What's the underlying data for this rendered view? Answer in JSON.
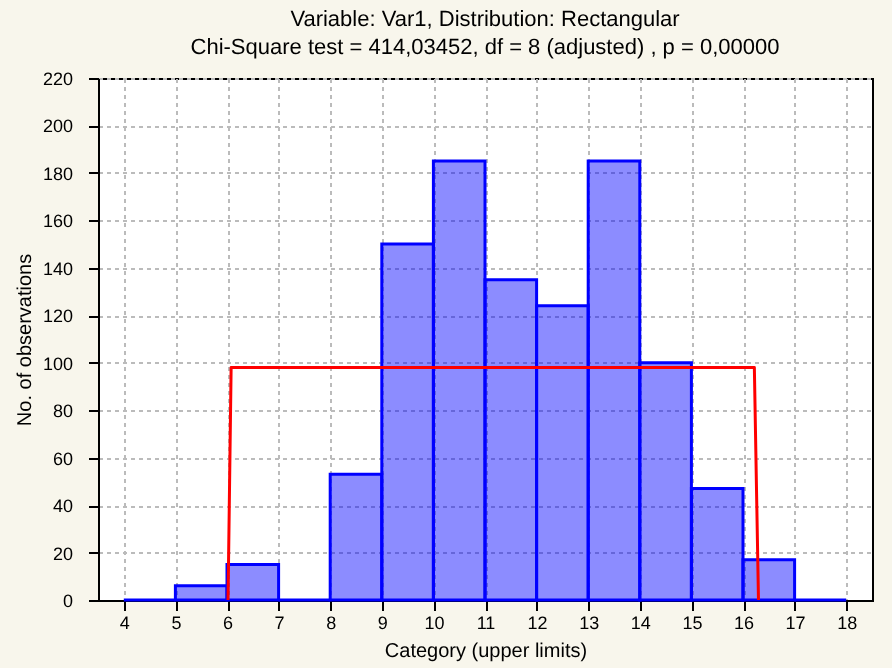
{
  "chart_data": {
    "type": "histogram",
    "title": "Variable: Var1, Distribution: Rectangular",
    "subtitle": "Chi-Square test = 414,03452, df = 8 (adjusted) , p = 0,00000",
    "xlabel": "Category (upper limits)",
    "ylabel": "No. of observations",
    "bins": [
      4,
      5,
      6,
      7,
      8,
      9,
      10,
      11,
      12,
      13,
      14,
      15,
      16,
      17,
      18
    ],
    "series": [
      {
        "color": "#0000ff",
        "values": [
          0,
          6,
          15,
          0,
          53,
          150,
          185,
          135,
          124,
          185,
          100,
          47,
          17,
          0
        ]
      },
      {
        "type": "line",
        "color": "#ff0000",
        "x": [
          6.02,
          6.08,
          16.22,
          16.3
        ],
        "values": [
          0,
          98,
          98,
          0
        ]
      }
    ],
    "xlim": [
      3.5,
      18.5
    ],
    "xticks": [
      4,
      5,
      6,
      7,
      8,
      9,
      10,
      11,
      12,
      13,
      14,
      15,
      16,
      17,
      18
    ],
    "ylim": [
      0,
      220
    ],
    "yticks": [
      0,
      20,
      40,
      60,
      80,
      100,
      120,
      140,
      160,
      180,
      200,
      220
    ],
    "grid": true
  }
}
